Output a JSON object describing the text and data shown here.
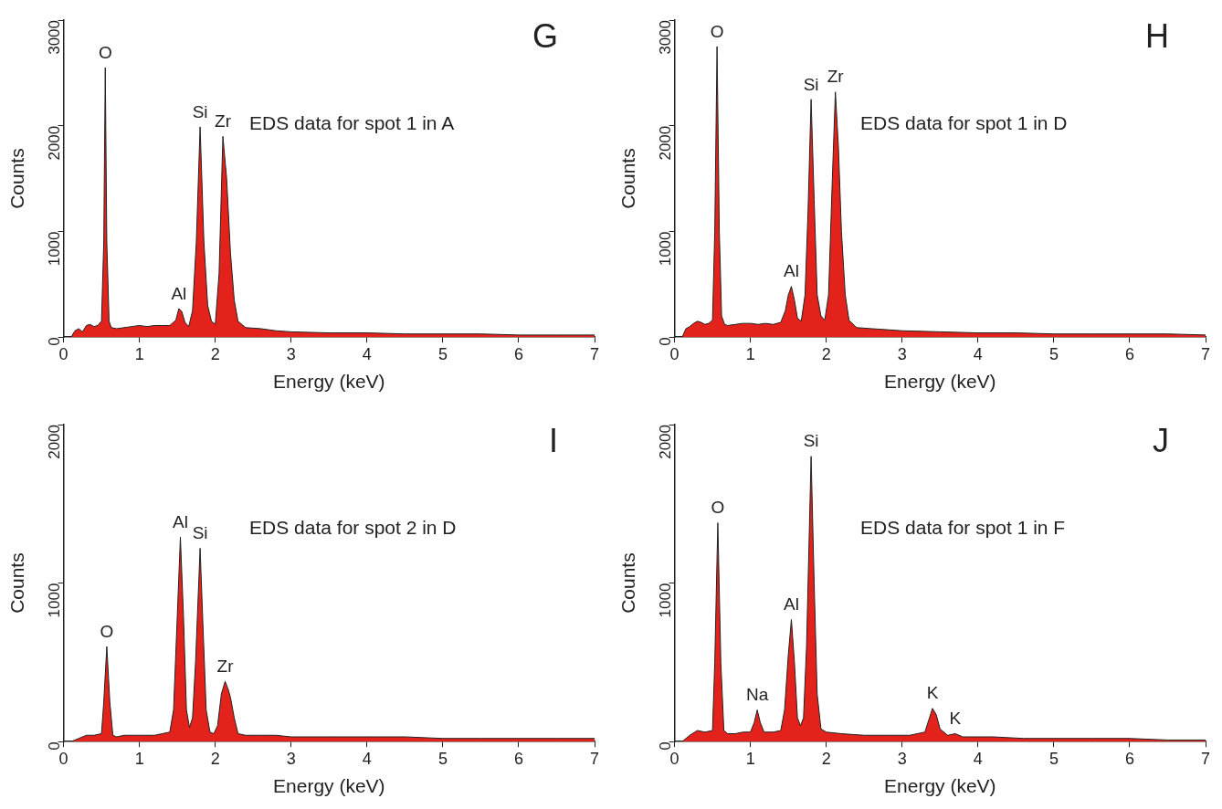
{
  "chart_data": [
    {
      "type": "area",
      "title": "G",
      "subtitle": "EDS data for spot 1 in A",
      "xlabel": "Energy (keV)",
      "ylabel": "Counts",
      "xlim": [
        0,
        7
      ],
      "xticks": [
        0,
        1,
        2,
        3,
        4,
        5,
        6,
        7
      ],
      "ylim": [
        0,
        3000
      ],
      "yticks": [
        0,
        1000,
        2000,
        3000
      ],
      "series": [
        {
          "color": "#e3231b",
          "x": [
            0.1,
            0.15,
            0.2,
            0.25,
            0.3,
            0.35,
            0.4,
            0.45,
            0.5,
            0.53,
            0.55,
            0.57,
            0.6,
            0.63,
            0.7,
            0.8,
            0.9,
            1.0,
            1.1,
            1.2,
            1.3,
            1.4,
            1.48,
            1.52,
            1.56,
            1.6,
            1.65,
            1.7,
            1.75,
            1.8,
            1.85,
            1.9,
            1.95,
            2.0,
            2.05,
            2.1,
            2.15,
            2.2,
            2.25,
            2.3,
            2.4,
            2.6,
            2.8,
            3.0,
            3.5,
            4.0,
            4.5,
            5.0,
            5.5,
            6.0,
            6.5,
            7.0
          ],
          "values": [
            0,
            60,
            80,
            50,
            110,
            120,
            100,
            110,
            150,
            900,
            2550,
            900,
            150,
            90,
            80,
            90,
            100,
            110,
            100,
            110,
            110,
            110,
            160,
            270,
            240,
            140,
            100,
            250,
            900,
            1990,
            900,
            300,
            150,
            120,
            600,
            1900,
            1500,
            800,
            350,
            150,
            90,
            80,
            60,
            50,
            40,
            40,
            30,
            30,
            30,
            20,
            20,
            20
          ]
        }
      ],
      "annotations": [
        {
          "text": "O",
          "x": 0.55,
          "y": 2550
        },
        {
          "text": "Si",
          "x": 1.8,
          "y": 1990
        },
        {
          "text": "Zr",
          "x": 2.1,
          "y": 1900
        },
        {
          "text": "Al",
          "x": 1.52,
          "y": 270
        }
      ]
    },
    {
      "type": "area",
      "title": "H",
      "subtitle": "EDS data for spot 1 in D",
      "xlabel": "Energy (keV)",
      "ylabel": "Counts",
      "xlim": [
        0,
        7
      ],
      "xticks": [
        0,
        1,
        2,
        3,
        4,
        5,
        6,
        7
      ],
      "ylim": [
        0,
        3000
      ],
      "yticks": [
        0,
        1000,
        2000,
        3000
      ],
      "series": [
        {
          "color": "#e3231b",
          "x": [
            0.1,
            0.15,
            0.2,
            0.25,
            0.3,
            0.35,
            0.4,
            0.45,
            0.5,
            0.53,
            0.56,
            0.59,
            0.62,
            0.66,
            0.7,
            0.8,
            0.9,
            1.0,
            1.1,
            1.2,
            1.3,
            1.4,
            1.46,
            1.5,
            1.54,
            1.58,
            1.62,
            1.67,
            1.72,
            1.76,
            1.8,
            1.84,
            1.88,
            1.93,
            1.98,
            2.03,
            2.08,
            2.12,
            2.16,
            2.2,
            2.25,
            2.3,
            2.4,
            2.6,
            2.8,
            3.0,
            3.5,
            4.0,
            4.5,
            5.0,
            5.5,
            6.0,
            6.5,
            7.0
          ],
          "values": [
            0,
            80,
            100,
            130,
            150,
            140,
            120,
            130,
            160,
            1000,
            2750,
            1000,
            200,
            120,
            110,
            120,
            130,
            130,
            120,
            130,
            120,
            140,
            250,
            400,
            480,
            350,
            180,
            150,
            400,
            1200,
            2250,
            1300,
            400,
            200,
            160,
            400,
            1500,
            2320,
            1800,
            1000,
            400,
            160,
            90,
            80,
            70,
            60,
            50,
            40,
            40,
            30,
            30,
            30,
            30,
            20
          ]
        }
      ],
      "annotations": [
        {
          "text": "O",
          "x": 0.56,
          "y": 2750
        },
        {
          "text": "Si",
          "x": 1.8,
          "y": 2250
        },
        {
          "text": "Zr",
          "x": 2.12,
          "y": 2320
        },
        {
          "text": "Al",
          "x": 1.54,
          "y": 480
        }
      ]
    },
    {
      "type": "area",
      "title": "I",
      "subtitle": "EDS data for spot 2 in D",
      "xlabel": "Energy (keV)",
      "ylabel": "Counts",
      "xlim": [
        0,
        7
      ],
      "xticks": [
        0,
        1,
        2,
        3,
        4,
        5,
        6,
        7
      ],
      "ylim": [
        0,
        2000
      ],
      "yticks": [
        0,
        1000,
        2000
      ],
      "series": [
        {
          "color": "#e3231b",
          "x": [
            0.1,
            0.2,
            0.3,
            0.4,
            0.5,
            0.53,
            0.57,
            0.61,
            0.65,
            0.7,
            0.8,
            0.9,
            1.0,
            1.1,
            1.2,
            1.3,
            1.4,
            1.45,
            1.5,
            1.54,
            1.58,
            1.62,
            1.66,
            1.7,
            1.74,
            1.8,
            1.84,
            1.88,
            1.93,
            1.98,
            2.03,
            2.08,
            2.13,
            2.17,
            2.2,
            2.25,
            2.3,
            2.4,
            2.6,
            2.8,
            3.0,
            3.5,
            4.0,
            4.5,
            5.0,
            5.5,
            6.0,
            6.5,
            7.0
          ],
          "values": [
            0,
            20,
            40,
            40,
            50,
            250,
            600,
            250,
            40,
            30,
            40,
            40,
            40,
            40,
            40,
            50,
            60,
            200,
            800,
            1290,
            800,
            200,
            90,
            150,
            500,
            1220,
            700,
            200,
            60,
            50,
            100,
            300,
            380,
            330,
            280,
            150,
            50,
            40,
            40,
            40,
            30,
            30,
            30,
            30,
            20,
            20,
            20,
            20,
            20
          ]
        }
      ],
      "annotations": [
        {
          "text": "O",
          "x": 0.57,
          "y": 600
        },
        {
          "text": "Al",
          "x": 1.54,
          "y": 1290
        },
        {
          "text": "Si",
          "x": 1.8,
          "y": 1220
        },
        {
          "text": "Zr",
          "x": 2.13,
          "y": 380
        }
      ]
    },
    {
      "type": "area",
      "title": "J",
      "subtitle": "EDS data for spot 1 in F",
      "xlabel": "Energy (keV)",
      "ylabel": "Counts",
      "xlim": [
        0,
        7
      ],
      "xticks": [
        0,
        1,
        2,
        3,
        4,
        5,
        6,
        7
      ],
      "ylim": [
        0,
        2000
      ],
      "yticks": [
        0,
        1000,
        2000
      ],
      "series": [
        {
          "color": "#e3231b",
          "x": [
            0.1,
            0.2,
            0.3,
            0.4,
            0.5,
            0.53,
            0.57,
            0.61,
            0.65,
            0.7,
            0.8,
            0.9,
            1.0,
            1.05,
            1.09,
            1.13,
            1.18,
            1.3,
            1.4,
            1.45,
            1.5,
            1.54,
            1.58,
            1.62,
            1.66,
            1.7,
            1.74,
            1.8,
            1.84,
            1.88,
            1.93,
            2.0,
            2.2,
            2.5,
            2.8,
            3.1,
            3.3,
            3.36,
            3.4,
            3.45,
            3.5,
            3.6,
            3.7,
            3.8,
            3.9,
            4.2,
            4.6,
            5.0,
            5.5,
            6.0,
            6.5,
            7.0
          ],
          "values": [
            0,
            40,
            70,
            60,
            70,
            500,
            1380,
            500,
            70,
            50,
            50,
            60,
            60,
            120,
            200,
            120,
            60,
            60,
            70,
            200,
            550,
            770,
            500,
            150,
            100,
            150,
            600,
            1800,
            1000,
            300,
            80,
            60,
            50,
            40,
            40,
            40,
            60,
            150,
            210,
            170,
            80,
            40,
            50,
            30,
            30,
            30,
            20,
            20,
            20,
            20,
            10,
            10
          ]
        }
      ],
      "annotations": [
        {
          "text": "O",
          "x": 0.57,
          "y": 1380
        },
        {
          "text": "Si",
          "x": 1.8,
          "y": 1800
        },
        {
          "text": "Al",
          "x": 1.54,
          "y": 770
        },
        {
          "text": "Na",
          "x": 1.09,
          "y": 200
        },
        {
          "text": "K",
          "x": 3.4,
          "y": 210
        },
        {
          "text": "K",
          "x": 3.7,
          "y": 50
        }
      ]
    }
  ]
}
